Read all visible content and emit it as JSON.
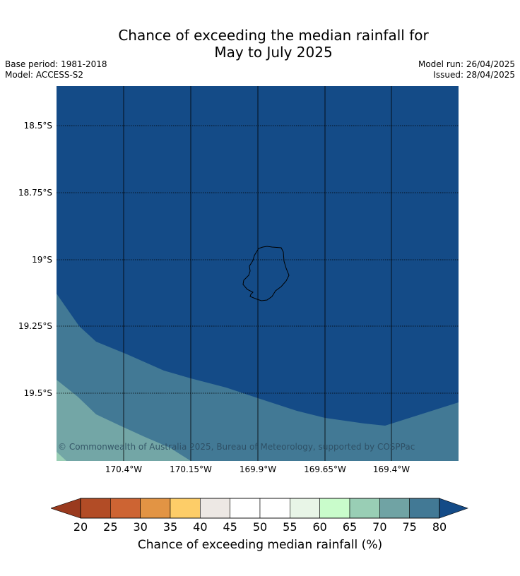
{
  "title_line1": "Chance of exceeding the median rainfall for",
  "title_line2": "May to July 2025",
  "base_period": "Base period: 1981-2018",
  "model": "Model: ACCESS-S2",
  "model_run": "Model run: 26/04/2025",
  "issued": "Issued: 28/04/2025",
  "copyright": "© Commonwealth of Australia 2025, Bureau of Meteorology, supported by COSPPac",
  "lat_labels": [
    "18.5°S",
    "18.75°S",
    "19°S",
    "19.25°S",
    "19.5°S"
  ],
  "lon_labels": [
    "170.4°W",
    "170.15°W",
    "169.9°W",
    "169.65°W",
    "169.4°W"
  ],
  "map_region": {
    "lat_range": [
      18.35,
      19.74
    ],
    "lon_range": [
      170.65,
      169.15
    ],
    "island": "Niue"
  },
  "map_colors": {
    "band_75_80": "#427995",
    "band_70_75": "#73a6a6",
    "band_above_80": "#144b87",
    "coastline": "#000000",
    "gridline": "#000000"
  },
  "colorbar": {
    "title": "Chance of exceeding median rainfall (%)",
    "ticks": [
      "20",
      "25",
      "30",
      "35",
      "40",
      "45",
      "50",
      "55",
      "60",
      "65",
      "70",
      "75",
      "80"
    ],
    "under_color": "#9a3a1e",
    "over_color": "#144b87",
    "segments": [
      {
        "range": "20-25",
        "color": "#b24c26"
      },
      {
        "range": "25-30",
        "color": "#cd6433"
      },
      {
        "range": "30-35",
        "color": "#e29444"
      },
      {
        "range": "35-40",
        "color": "#fdcd68"
      },
      {
        "range": "40-45",
        "color": "#ede8e4"
      },
      {
        "range": "45-50",
        "color": "#ffffff"
      },
      {
        "range": "50-55",
        "color": "#ffffff"
      },
      {
        "range": "55-60",
        "color": "#e8f5e7"
      },
      {
        "range": "60-65",
        "color": "#c9fccb"
      },
      {
        "range": "65-70",
        "color": "#99ceb5"
      },
      {
        "range": "70-75",
        "color": "#70a3a4"
      },
      {
        "range": "75-80",
        "color": "#427995"
      }
    ]
  }
}
